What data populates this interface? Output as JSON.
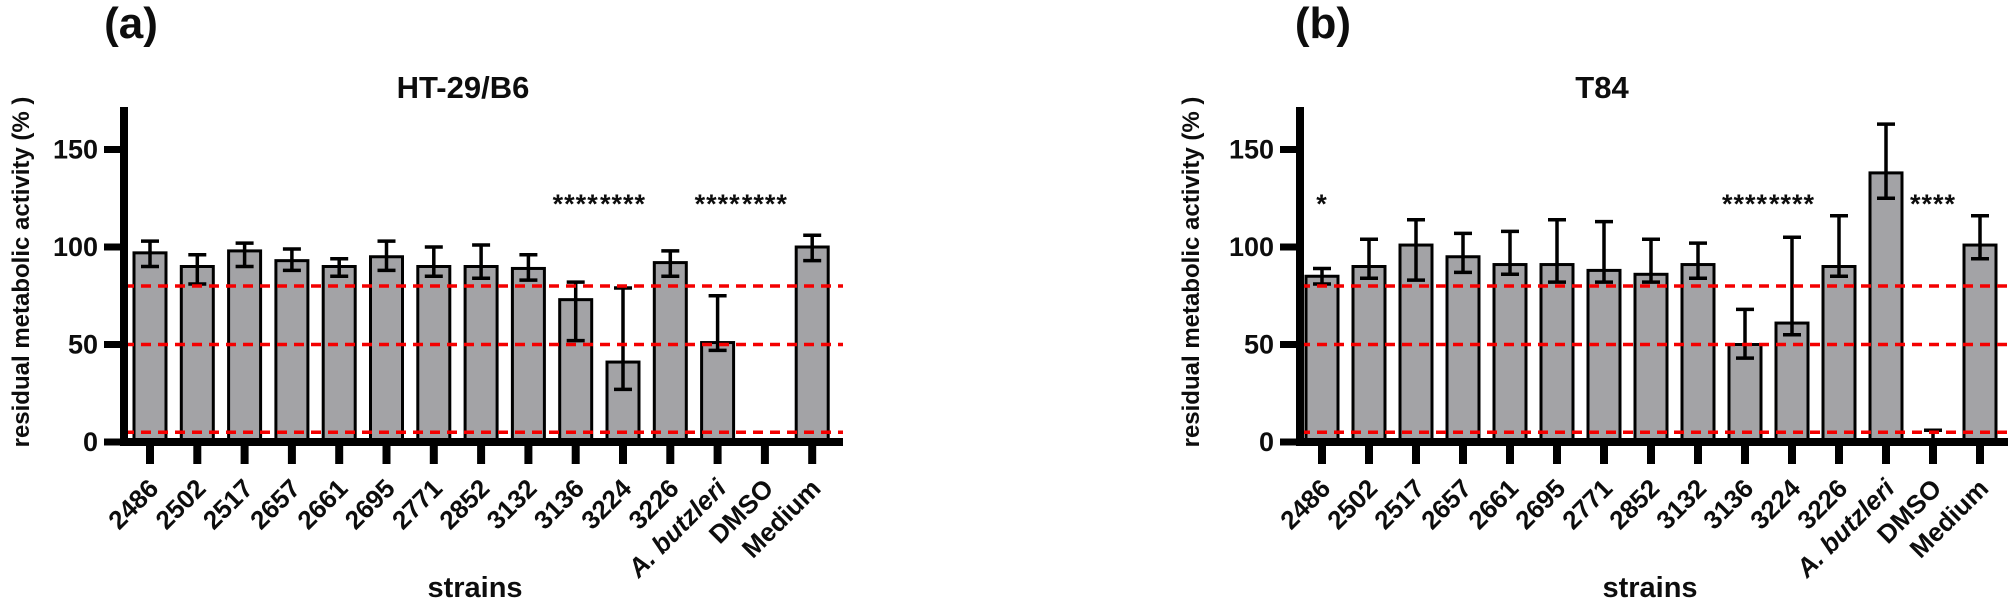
{
  "figure": {
    "colors": {
      "bar_fill": "#A3A3A6",
      "bar_stroke": "#000000",
      "error_bar": "#000000",
      "reference_line": "#F40000",
      "axis": "#000000",
      "text": "#0d0d0d"
    },
    "panels": [
      {
        "panel_label": "(a)",
        "chart_data": {
          "type": "bar",
          "title": "HT-29/B6",
          "xlabel": "strains",
          "ylabel": "residual metabolic activity (% )",
          "ylim": [
            0,
            172
          ],
          "yticks": [
            0,
            50,
            100,
            150
          ],
          "reference_lines_y": [
            80,
            50,
            5
          ],
          "grid": false,
          "legend": "none",
          "categories": [
            "2486",
            "2502",
            "2517",
            "2657",
            "2661",
            "2695",
            "2771",
            "2852",
            "3132",
            "3136",
            "3224",
            "3226",
            "A. butzleri",
            "DMSO",
            "Medium"
          ],
          "values": [
            97,
            90,
            98,
            93,
            90,
            95,
            90,
            90,
            89,
            73,
            41,
            92,
            51,
            0,
            100
          ],
          "error_up": [
            6,
            6,
            4,
            6,
            4,
            8,
            10,
            11,
            7,
            9,
            38,
            6,
            24,
            0,
            6
          ],
          "error_down": [
            7,
            9,
            8,
            5,
            5,
            7,
            5,
            6,
            6,
            21,
            14,
            7,
            4,
            0,
            7
          ],
          "significance": [
            "",
            "",
            "",
            "",
            "",
            "",
            "",
            "",
            "",
            "****",
            "****",
            "",
            "****",
            "****",
            ""
          ],
          "italic_categories": [
            "A. butzleri"
          ]
        }
      },
      {
        "panel_label": "(b)",
        "chart_data": {
          "type": "bar",
          "title": "T84",
          "xlabel": "strains",
          "ylabel": "residual metabolic activity (% )",
          "ylim": [
            0,
            172
          ],
          "yticks": [
            0,
            50,
            100,
            150
          ],
          "reference_lines_y": [
            80,
            50,
            5
          ],
          "grid": false,
          "legend": "none",
          "categories": [
            "2486",
            "2502",
            "2517",
            "2657",
            "2661",
            "2695",
            "2771",
            "2852",
            "3132",
            "3136",
            "3224",
            "3226",
            "A. butzleri",
            "DMSO",
            "Medium"
          ],
          "values": [
            85,
            90,
            101,
            95,
            91,
            91,
            88,
            86,
            91,
            50,
            61,
            90,
            138,
            1,
            101
          ],
          "error_up": [
            4,
            14,
            13,
            12,
            17,
            23,
            25,
            18,
            11,
            18,
            44,
            26,
            25,
            5,
            15
          ],
          "error_down": [
            4,
            6,
            18,
            8,
            5,
            9,
            6,
            4,
            7,
            7,
            6,
            5,
            13,
            0,
            7
          ],
          "significance": [
            "*",
            "",
            "",
            "",
            "",
            "",
            "",
            "",
            "",
            "****",
            "****",
            "",
            "",
            "****",
            ""
          ],
          "italic_categories": [
            "A. butzleri"
          ]
        }
      }
    ]
  }
}
